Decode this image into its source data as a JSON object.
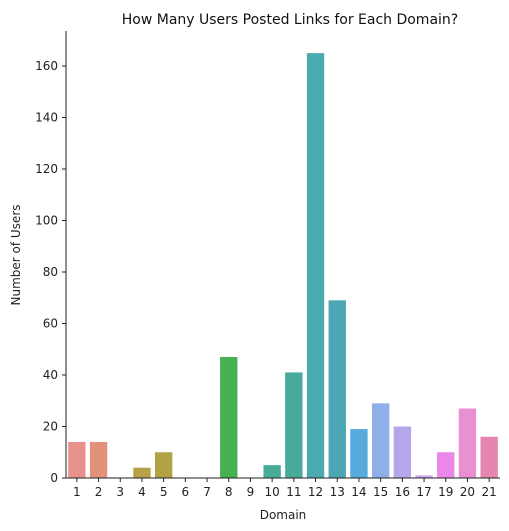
{
  "chart_data": {
    "type": "bar",
    "title": "How Many Users Posted Links for Each Domain?",
    "xlabel": "Domain",
    "ylabel": "Number of Users",
    "ylim": [
      0,
      174
    ],
    "yticks": [
      0,
      20,
      40,
      60,
      80,
      100,
      120,
      140,
      160
    ],
    "categories": [
      "1",
      "2",
      "3",
      "4",
      "5",
      "6",
      "7",
      "8",
      "9",
      "10",
      "11",
      "12",
      "13",
      "14",
      "15",
      "16",
      "17",
      "19",
      "20",
      "21"
    ],
    "values": [
      14,
      14,
      0,
      4,
      10,
      0,
      0,
      47,
      0,
      5,
      41,
      165,
      69,
      19,
      29,
      20,
      1,
      10,
      27,
      16
    ],
    "colors": [
      "#e8918c",
      "#e2907a",
      "#cf9a52",
      "#b6a149",
      "#b1a243",
      "#9ead48",
      "#7fb047",
      "#46b150",
      "#49af8a",
      "#49ab99",
      "#47aa9b",
      "#4aabaf",
      "#4ca6b4",
      "#56aadc",
      "#90aee8",
      "#b6a6ea",
      "#cfa2ec",
      "#ec87ea",
      "#e890d2",
      "#e486af"
    ],
    "grid": false,
    "legend": "none"
  }
}
